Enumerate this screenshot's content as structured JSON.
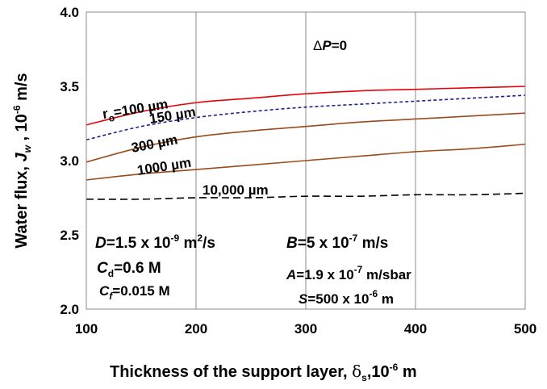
{
  "chart_data": {
    "type": "line",
    "xlabel": "Thickness of the support layer, δs,10⁻⁶ m",
    "xlabel_parts": {
      "main": "Thickness of the support layer, ",
      "delta": "δ",
      "delta_sub": "s",
      "unit_pre": ",10",
      "unit_exp": "-6",
      "unit_post": " m"
    },
    "ylabel": "Water flux, Jw , 10⁻⁶ m/s",
    "ylabel_parts": {
      "main": "Water flux, ",
      "J": "J",
      "J_sub": "w",
      "unit_pre": " , 10",
      "unit_exp": "-6",
      "unit_post": " m/s"
    },
    "xlim": [
      100,
      500
    ],
    "ylim": [
      2.0,
      4.0
    ],
    "x_ticks": [
      "100",
      "200",
      "300",
      "400",
      "500"
    ],
    "y_ticks": [
      "2.0",
      "2.5",
      "3.0",
      "3.5",
      "4.0"
    ],
    "grid": "vertical",
    "x": [
      100,
      150,
      200,
      250,
      300,
      350,
      400,
      450,
      500
    ],
    "series": [
      {
        "name": "ro=100 µm",
        "label_pre": "r",
        "label_sub": "o",
        "label_post": "=100 µm",
        "color": "#e8000b",
        "dash": "",
        "values": [
          3.24,
          3.33,
          3.39,
          3.42,
          3.45,
          3.47,
          3.48,
          3.49,
          3.5
        ]
      },
      {
        "name": "150 µm",
        "label_pre": "150 µm",
        "label_sub": "",
        "label_post": "",
        "color": "#1f1f8f",
        "dash": "4,3",
        "values": [
          3.14,
          3.23,
          3.29,
          3.33,
          3.36,
          3.38,
          3.4,
          3.42,
          3.44
        ]
      },
      {
        "name": "300 µm",
        "label_pre": "300 µm",
        "label_sub": "",
        "label_post": "",
        "color": "#9a4a1c",
        "dash": "",
        "values": [
          2.99,
          3.09,
          3.16,
          3.2,
          3.23,
          3.26,
          3.28,
          3.3,
          3.32
        ]
      },
      {
        "name": "1000 µm",
        "label_pre": "1000 µm",
        "label_sub": "",
        "label_post": "",
        "color": "#9a4a1c",
        "dash": "",
        "values": [
          2.87,
          2.91,
          2.94,
          2.97,
          3.0,
          3.03,
          3.06,
          3.08,
          3.11
        ]
      },
      {
        "name": "10,000 µm",
        "label_pre": "10,000 µm",
        "label_sub": "",
        "label_post": "",
        "color": "#000000",
        "dash": "9,5",
        "values": [
          2.74,
          2.74,
          2.75,
          2.75,
          2.76,
          2.76,
          2.77,
          2.77,
          2.78
        ]
      }
    ],
    "annotations": {
      "dP": {
        "delta": "Δ",
        "var": "P",
        "rest": "=0"
      },
      "D": {
        "var": "D",
        "pre": "=1.5 x 10",
        "exp": "-9",
        "post": " m",
        "exp2": "2",
        "tail": "/s"
      },
      "Cd": {
        "var": "C",
        "sub": "d",
        "rest": "=0.6 M"
      },
      "Cf": {
        "var": "C",
        "sub": "f",
        "rest": "=0.015 M"
      },
      "B": {
        "var": "B",
        "pre": "=5 x 10",
        "exp": "-7",
        "post": " m/s"
      },
      "A": {
        "var": "A",
        "pre": "=1.9 x 10",
        "exp": "-7",
        "post": " m/sbar"
      },
      "S": {
        "var": "S",
        "pre": "=500 x 10",
        "exp": "-6",
        "post": " m"
      }
    }
  }
}
